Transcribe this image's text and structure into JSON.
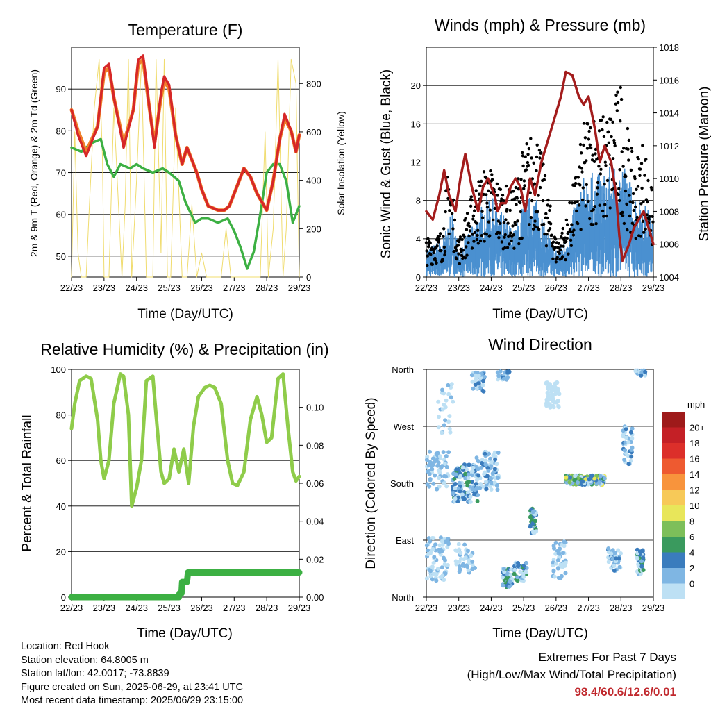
{
  "chart_data": [
    {
      "type": "line",
      "title": "Temperature (F)",
      "xlabel": "Time (Day/UTC)",
      "ylabel": "2m & 9m T (Red, Orange) & 2m Td (Green)",
      "ylabel_right": "Solar Insolation (Yellow)",
      "x_ticks": [
        "22/23",
        "23/23",
        "24/23",
        "25/23",
        "26/23",
        "27/23",
        "28/23",
        "29/23"
      ],
      "ylim": [
        45,
        100
      ],
      "y_ticks": [
        "50",
        "60",
        "70",
        "80",
        "90"
      ],
      "ylim_right": [
        0,
        950
      ],
      "y_ticks_right": [
        "0",
        "200",
        "400",
        "600",
        "800"
      ],
      "grid": "horizontal",
      "colors": {
        "t2m": "#d62728",
        "t9m": "#f07f2a",
        "td": "#3cb043",
        "solar": "#f0dc6e"
      },
      "series": [
        {
          "key": "t2m",
          "x": [
            0,
            0.2,
            0.45,
            0.8,
            1.0,
            1.15,
            1.3,
            1.6,
            1.9,
            2.05,
            2.2,
            2.4,
            2.55,
            2.75,
            2.85,
            3.0,
            3.2,
            3.4,
            3.55,
            3.7,
            3.85,
            4.0,
            4.2,
            4.5,
            4.7,
            4.85,
            5.1,
            5.3,
            5.5,
            5.7,
            5.85,
            6.0,
            6.2,
            6.4,
            6.55,
            6.75,
            6.9,
            7.0
          ],
          "values": [
            85,
            79,
            74,
            81,
            95,
            96,
            88,
            76,
            85,
            97,
            98,
            85,
            76,
            89,
            93,
            91,
            79,
            72,
            76,
            73,
            70,
            66,
            62,
            61,
            61,
            62,
            67,
            71,
            69,
            65,
            63,
            61,
            68,
            78,
            84,
            80,
            75,
            79
          ]
        },
        {
          "key": "t9m",
          "x": [
            0,
            0.2,
            0.45,
            0.8,
            1.0,
            1.15,
            1.3,
            1.6,
            1.9,
            2.05,
            2.2,
            2.4,
            2.55,
            2.75,
            2.85,
            3.0,
            3.2,
            3.4,
            3.55,
            3.7,
            3.85,
            4.0,
            4.2,
            4.5,
            4.7,
            4.85,
            5.1,
            5.3,
            5.5,
            5.7,
            5.85,
            6.0,
            6.2,
            6.4,
            6.55,
            6.75,
            6.9,
            7.0
          ],
          "values": [
            85,
            80,
            75,
            81,
            94,
            95,
            88,
            77,
            85,
            96,
            97,
            85,
            77,
            88,
            92,
            90,
            79,
            72,
            76,
            73,
            70,
            66,
            62,
            61,
            61,
            62,
            67,
            71,
            69,
            65,
            63,
            61,
            68,
            78,
            83,
            80,
            75,
            79
          ]
        },
        {
          "key": "td",
          "x": [
            0,
            0.3,
            0.6,
            0.9,
            1.1,
            1.3,
            1.5,
            1.8,
            2.0,
            2.2,
            2.5,
            2.8,
            3.0,
            3.3,
            3.5,
            3.8,
            4.0,
            4.2,
            4.5,
            4.8,
            5.0,
            5.2,
            5.4,
            5.6,
            5.8,
            6.0,
            6.2,
            6.4,
            6.6,
            6.8,
            7.0
          ],
          "values": [
            76,
            75,
            77,
            78,
            72,
            69,
            72,
            71,
            72,
            71,
            70,
            71,
            70,
            68,
            63,
            58,
            59,
            59,
            58,
            59,
            56,
            52,
            47,
            51,
            60,
            70,
            72,
            72,
            68,
            58,
            62
          ]
        },
        {
          "key": "solar",
          "x": [
            0,
            0.1,
            0.2,
            0.3,
            0.45,
            0.55,
            0.7,
            0.85,
            0.95,
            1.0,
            1.15,
            1.3,
            1.55,
            1.65,
            1.75,
            1.85,
            2.0,
            2.15,
            2.3,
            2.5,
            2.6,
            2.75,
            2.85,
            2.95,
            3.05,
            3.2,
            3.4,
            3.55,
            3.7,
            3.85,
            4.0,
            4.15,
            4.3,
            4.45,
            4.6,
            4.75,
            4.9,
            5.05,
            5.2,
            5.35,
            5.55,
            5.65,
            5.8,
            5.95,
            6.05,
            6.2,
            6.35,
            6.5,
            6.6,
            6.75,
            6.9,
            7.0
          ],
          "values": [
            0,
            600,
            100,
            0,
            0,
            300,
            700,
            900,
            500,
            0,
            0,
            700,
            0,
            300,
            900,
            0,
            400,
            900,
            0,
            0,
            900,
            100,
            900,
            0,
            0,
            700,
            0,
            0,
            300,
            0,
            100,
            0,
            0,
            0,
            0,
            200,
            0,
            0,
            0,
            0,
            0,
            0,
            0,
            600,
            0,
            200,
            900,
            0,
            200,
            900,
            800,
            0
          ]
        }
      ]
    },
    {
      "type": "line",
      "title": "Winds (mph) & Pressure (mb)",
      "xlabel": "Time (Day/UTC)",
      "ylabel": "Sonic Wind & Gust (Blue, Black)",
      "ylabel_right": "Station Pressure (Maroon)",
      "x_ticks": [
        "22/23",
        "23/23",
        "24/23",
        "25/23",
        "26/23",
        "27/23",
        "28/23",
        "29/23"
      ],
      "ylim": [
        0,
        24
      ],
      "y_ticks": [
        "0",
        "4",
        "8",
        "12",
        "16",
        "20"
      ],
      "ylim_right": [
        1004,
        1018
      ],
      "y_ticks_right": [
        "1004",
        "1006",
        "1008",
        "1010",
        "1012",
        "1014",
        "1016",
        "1018"
      ],
      "grid": "horizontal",
      "colors": {
        "wind": "#4a90d0",
        "gust": "#000000",
        "pressure": "#a31c1c"
      },
      "series": [
        {
          "key": "pressure",
          "x": [
            0,
            0.2,
            0.4,
            0.55,
            0.7,
            0.9,
            1.05,
            1.2,
            1.4,
            1.6,
            1.75,
            1.9,
            2.1,
            2.2,
            2.3,
            2.45,
            2.6,
            2.75,
            2.9,
            3.05,
            3.2,
            3.35,
            3.55,
            3.7,
            3.85,
            4.0,
            4.15,
            4.3,
            4.5,
            4.7,
            4.85,
            5.0,
            5.2,
            5.35,
            5.5,
            5.7,
            5.85,
            5.95,
            6.05,
            6.15,
            6.25,
            6.4,
            6.55,
            6.7,
            6.85,
            7.0
          ],
          "values": [
            1008,
            1007.5,
            1009,
            1010.5,
            1009,
            1008,
            1010,
            1011.5,
            1009.5,
            1008,
            1009.5,
            1010,
            1009,
            1008,
            1008.5,
            1008.5,
            1009.5,
            1010,
            1009.5,
            1008,
            1010,
            1009,
            1011,
            1012,
            1013,
            1014,
            1015,
            1016.5,
            1016.3,
            1015,
            1014.5,
            1015,
            1013,
            1011,
            1012,
            1011,
            1009,
            1006.5,
            1005,
            1005.5,
            1006,
            1007,
            1007.5,
            1008,
            1007,
            1006
          ]
        }
      ],
      "wind_range_mph": [
        0,
        12
      ],
      "gust_range_mph": [
        0,
        21
      ]
    },
    {
      "type": "line",
      "title": "Relative Humidity (%) & Precipitation (in)",
      "xlabel": "Time (Day/UTC)",
      "ylabel": "Percent & Total Rainfall",
      "x_ticks": [
        "22/23",
        "23/23",
        "24/23",
        "25/23",
        "26/23",
        "27/23",
        "28/23",
        "29/23"
      ],
      "ylim": [
        0,
        100
      ],
      "y_ticks": [
        "0",
        "20",
        "40",
        "60",
        "80",
        "100"
      ],
      "ylim_right": [
        0,
        0.12
      ],
      "y_ticks_right": [
        "0.00",
        "0.02",
        "0.04",
        "0.06",
        "0.08",
        "0.10"
      ],
      "grid": "horizontal",
      "colors": {
        "rh": "#8fcc4a",
        "precip": "#3cb043"
      },
      "series": [
        {
          "key": "rh",
          "x": [
            0,
            0.1,
            0.25,
            0.45,
            0.6,
            0.8,
            0.9,
            1.0,
            1.15,
            1.3,
            1.5,
            1.6,
            1.75,
            1.85,
            2.0,
            2.15,
            2.3,
            2.5,
            2.6,
            2.75,
            2.85,
            3.0,
            3.15,
            3.3,
            3.45,
            3.6,
            3.75,
            3.9,
            4.1,
            4.25,
            4.4,
            4.6,
            4.8,
            4.95,
            5.1,
            5.3,
            5.5,
            5.7,
            5.85,
            6.0,
            6.15,
            6.35,
            6.5,
            6.65,
            6.8,
            6.9,
            7.0
          ],
          "values": [
            74,
            85,
            95,
            97,
            96,
            78,
            60,
            52,
            60,
            85,
            98,
            97,
            80,
            40,
            48,
            60,
            95,
            97,
            80,
            55,
            50,
            52,
            65,
            55,
            65,
            50,
            75,
            88,
            92,
            93,
            92,
            85,
            60,
            50,
            49,
            55,
            78,
            88,
            80,
            68,
            70,
            96,
            98,
            75,
            55,
            51,
            53
          ]
        },
        {
          "key": "precip",
          "x": [
            0,
            3.3,
            3.32,
            3.38,
            3.4,
            3.55,
            3.58,
            4.0,
            7.0
          ],
          "values": [
            0,
            0,
            0.002,
            0.002,
            0.008,
            0.008,
            0.013,
            0.013,
            0.013
          ]
        }
      ]
    },
    {
      "type": "scatter",
      "title": "Wind Direction",
      "xlabel": "Time (Day/UTC)",
      "ylabel": "Direction (Colored By Speed)",
      "x_ticks": [
        "22/23",
        "23/23",
        "24/23",
        "25/23",
        "26/23",
        "27/23",
        "28/23",
        "29/23"
      ],
      "y_ticks": [
        "North",
        "East",
        "South",
        "West",
        "North"
      ],
      "ylim": [
        0,
        360
      ],
      "grid": "horizontal",
      "legend": {
        "title": "mph",
        "labels": [
          "20+",
          "18",
          "16",
          "14",
          "12",
          "10",
          "8",
          "6",
          "4",
          "2",
          "0"
        ],
        "colors": [
          "#9e1a1a",
          "#c42026",
          "#dc2f2a",
          "#ee5a30",
          "#f8943c",
          "#f7c958",
          "#e8e65a",
          "#7dbf5a",
          "#3a9a5e",
          "#3a7cbd",
          "#7fb6e3",
          "#bde0f4"
        ],
        "placement": "right"
      }
    }
  ],
  "footer": {
    "location": "Location: Red Hook",
    "elevation": "Station elevation: 64.8005 m",
    "latlon": "Station lat/lon: 42.0017; -73.8839",
    "created": "Figure created on Sun, 2025-06-29, at 23:41 UTC",
    "recent": "Most recent data timestamp: 2025/06/29 23:15:00"
  },
  "extremes": {
    "line1": "Extremes For Past 7 Days",
    "line2": "(High/Low/Max Wind/Total Precipitation)",
    "values": "98.4/60.6/12.6/0.01"
  }
}
